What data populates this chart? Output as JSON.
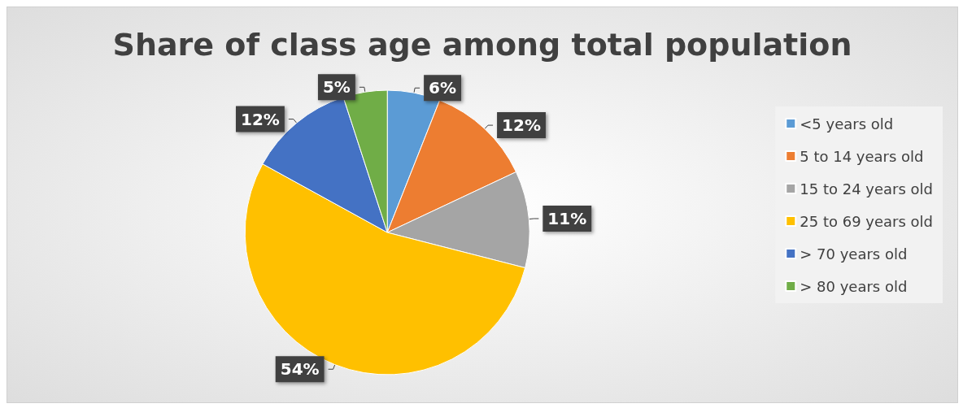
{
  "chart_data": {
    "type": "pie",
    "title": "Share of class age among total population",
    "categories": [
      "<5 years old",
      "5 to 14 years old",
      "15 to 24 years old",
      "25 to 69 years old",
      "> 70 years old",
      "> 80 years old"
    ],
    "values": [
      6,
      12,
      11,
      54,
      12,
      5
    ],
    "colors": [
      "#5b9bd5",
      "#ed7d31",
      "#a5a5a5",
      "#ffc000",
      "#4472c4",
      "#70ad47"
    ],
    "value_labels": [
      "6%",
      "12%",
      "11%",
      "54%",
      "12%",
      "5%"
    ],
    "legend": "right"
  }
}
